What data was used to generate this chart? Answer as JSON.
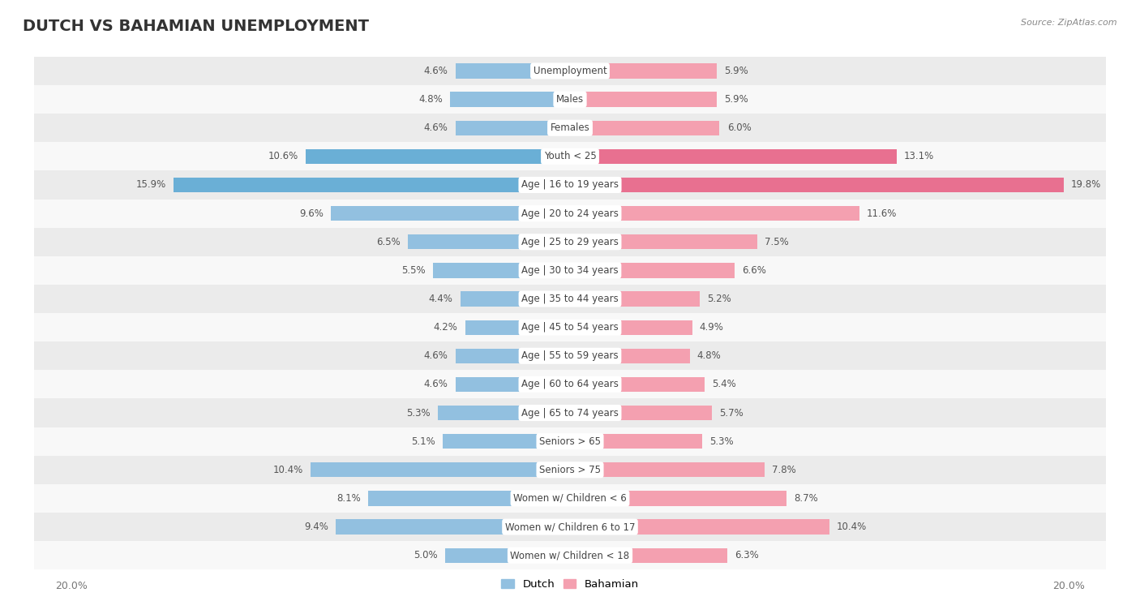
{
  "title": "DUTCH VS BAHAMIAN UNEMPLOYMENT",
  "source": "Source: ZipAtlas.com",
  "categories": [
    "Unemployment",
    "Males",
    "Females",
    "Youth < 25",
    "Age | 16 to 19 years",
    "Age | 20 to 24 years",
    "Age | 25 to 29 years",
    "Age | 30 to 34 years",
    "Age | 35 to 44 years",
    "Age | 45 to 54 years",
    "Age | 55 to 59 years",
    "Age | 60 to 64 years",
    "Age | 65 to 74 years",
    "Seniors > 65",
    "Seniors > 75",
    "Women w/ Children < 6",
    "Women w/ Children 6 to 17",
    "Women w/ Children < 18"
  ],
  "dutch_values": [
    4.6,
    4.8,
    4.6,
    10.6,
    15.9,
    9.6,
    6.5,
    5.5,
    4.4,
    4.2,
    4.6,
    4.6,
    5.3,
    5.1,
    10.4,
    8.1,
    9.4,
    5.0
  ],
  "bahamian_values": [
    5.9,
    5.9,
    6.0,
    13.1,
    19.8,
    11.6,
    7.5,
    6.6,
    5.2,
    4.9,
    4.8,
    5.4,
    5.7,
    5.3,
    7.8,
    8.7,
    10.4,
    6.3
  ],
  "dutch_color": "#92C0E0",
  "bahamian_color": "#F4A0B0",
  "dutch_highlight_color": "#6AAFD6",
  "bahamian_highlight_color": "#E87090",
  "row_bg_light": "#EBEBEB",
  "row_bg_white": "#F8F8F8",
  "axis_limit": 20.0,
  "title_fontsize": 14,
  "label_fontsize": 8.5,
  "value_fontsize": 8.5,
  "highlight_rows": [
    3,
    4
  ]
}
